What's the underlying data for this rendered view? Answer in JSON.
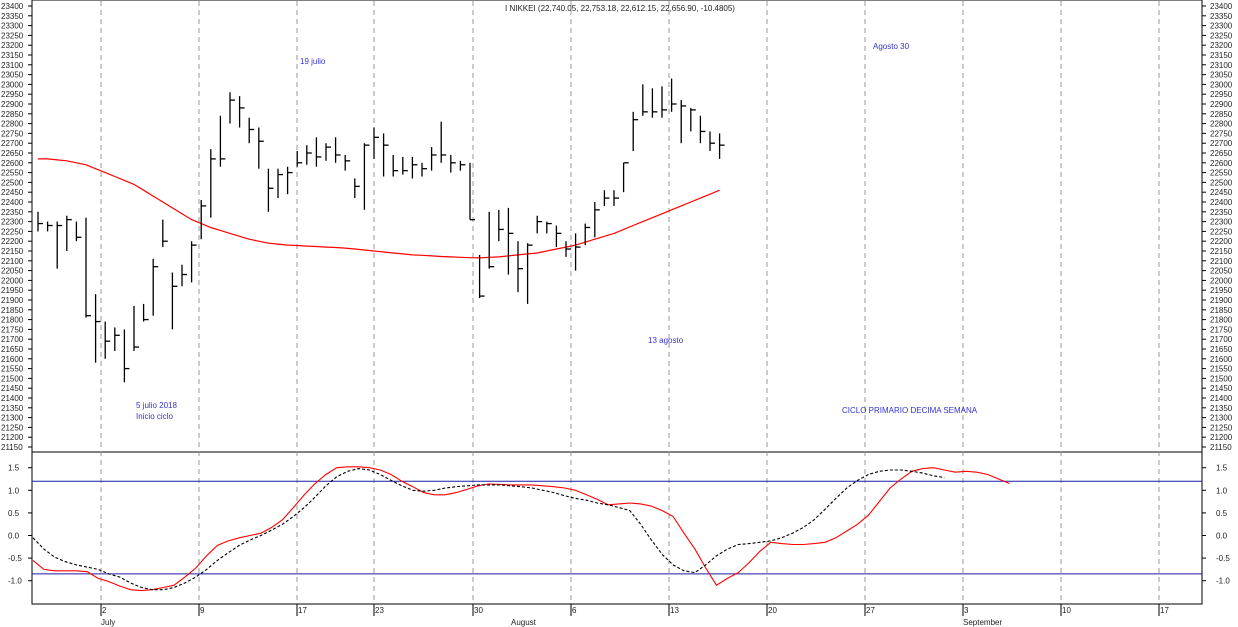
{
  "chart_data": [
    {
      "type": "ohlc",
      "title": "I NIKKEI (22,740.05, 22,753.18, 22,612.15, 22,656.90, -10.4805)",
      "ylim": [
        21100,
        23400
      ],
      "y_ticks": [
        21150,
        21200,
        21250,
        21300,
        21350,
        21400,
        21450,
        21500,
        21550,
        21600,
        21650,
        21700,
        21750,
        21800,
        21850,
        21900,
        21950,
        22000,
        22050,
        22100,
        22150,
        22200,
        22250,
        22300,
        22350,
        22400,
        22450,
        22500,
        22550,
        22600,
        22650,
        22700,
        22750,
        22800,
        22850,
        22900,
        22950,
        23000,
        23050,
        23100,
        23150,
        23200,
        23250,
        23300,
        23350,
        23400
      ],
      "bars": [
        {
          "h": 22350,
          "l": 22250,
          "c": 22290
        },
        {
          "h": 22300,
          "l": 22250,
          "c": 22280
        },
        {
          "h": 22300,
          "l": 22060,
          "c": 22280
        },
        {
          "h": 22330,
          "l": 22150,
          "c": 22310
        },
        {
          "h": 22300,
          "l": 22200,
          "c": 22220
        },
        {
          "h": 22320,
          "l": 21810,
          "c": 21820
        },
        {
          "h": 21930,
          "l": 21580,
          "c": 21790
        },
        {
          "h": 21790,
          "l": 21600,
          "c": 21690
        },
        {
          "h": 21760,
          "l": 21640,
          "c": 21720
        },
        {
          "h": 21750,
          "l": 21480,
          "c": 21550
        },
        {
          "h": 21870,
          "l": 21640,
          "c": 21660
        },
        {
          "h": 21880,
          "l": 21790,
          "c": 21800
        },
        {
          "h": 22110,
          "l": 21820,
          "c": 22070
        },
        {
          "h": 22310,
          "l": 22170,
          "c": 22200
        },
        {
          "h": 22040,
          "l": 21750,
          "c": 21970
        },
        {
          "h": 22080,
          "l": 21970,
          "c": 22030
        },
        {
          "h": 22200,
          "l": 21990,
          "c": 22180
        },
        {
          "h": 22410,
          "l": 22210,
          "c": 22380
        },
        {
          "h": 22670,
          "l": 22320,
          "c": 22620
        },
        {
          "h": 22840,
          "l": 22580,
          "c": 22620
        },
        {
          "h": 22960,
          "l": 22800,
          "c": 22920
        },
        {
          "h": 22940,
          "l": 22780,
          "c": 22880
        },
        {
          "h": 22830,
          "l": 22700,
          "c": 22770
        },
        {
          "h": 22780,
          "l": 22570,
          "c": 22710
        },
        {
          "h": 22570,
          "l": 22350,
          "c": 22470
        },
        {
          "h": 22570,
          "l": 22420,
          "c": 22540
        },
        {
          "h": 22580,
          "l": 22440,
          "c": 22550
        },
        {
          "h": 22660,
          "l": 22580,
          "c": 22600
        },
        {
          "h": 22690,
          "l": 22590,
          "c": 22650
        },
        {
          "h": 22730,
          "l": 22580,
          "c": 22630
        },
        {
          "h": 22700,
          "l": 22610,
          "c": 22680
        },
        {
          "h": 22730,
          "l": 22600,
          "c": 22640
        },
        {
          "h": 22640,
          "l": 22560,
          "c": 22610
        },
        {
          "h": 22520,
          "l": 22420,
          "c": 22480
        },
        {
          "h": 22700,
          "l": 22360,
          "c": 22690
        },
        {
          "h": 22780,
          "l": 22620,
          "c": 22730
        },
        {
          "h": 22750,
          "l": 22530,
          "c": 22690
        },
        {
          "h": 22640,
          "l": 22530,
          "c": 22560
        },
        {
          "h": 22630,
          "l": 22540,
          "c": 22560
        },
        {
          "h": 22630,
          "l": 22520,
          "c": 22590
        },
        {
          "h": 22600,
          "l": 22530,
          "c": 22570
        },
        {
          "h": 22680,
          "l": 22560,
          "c": 22640
        },
        {
          "h": 22810,
          "l": 22600,
          "c": 22640
        },
        {
          "h": 22640,
          "l": 22550,
          "c": 22600
        },
        {
          "h": 22610,
          "l": 22560,
          "c": 22590
        },
        {
          "h": 22600,
          "l": 22310,
          "c": 22310
        },
        {
          "h": 22130,
          "l": 21910,
          "c": 21920
        },
        {
          "h": 22350,
          "l": 22060,
          "c": 22070
        },
        {
          "h": 22360,
          "l": 22200,
          "c": 22260
        },
        {
          "h": 22370,
          "l": 22030,
          "c": 22240
        },
        {
          "h": 22200,
          "l": 21940,
          "c": 22060
        },
        {
          "h": 22190,
          "l": 21880,
          "c": 22180
        },
        {
          "h": 22330,
          "l": 22240,
          "c": 22300
        },
        {
          "h": 22300,
          "l": 22240,
          "c": 22290
        },
        {
          "h": 22280,
          "l": 22170,
          "c": 22240
        },
        {
          "h": 22200,
          "l": 22120,
          "c": 22160
        },
        {
          "h": 22240,
          "l": 22050,
          "c": 22170
        },
        {
          "h": 22290,
          "l": 22180,
          "c": 22270
        },
        {
          "h": 22400,
          "l": 22220,
          "c": 22360
        },
        {
          "h": 22460,
          "l": 22380,
          "c": 22420
        },
        {
          "h": 22460,
          "l": 22380,
          "c": 22420
        },
        {
          "h": 22600,
          "l": 22450,
          "c": 22600
        },
        {
          "h": 22860,
          "l": 22660,
          "c": 22820
        },
        {
          "h": 23000,
          "l": 22840,
          "c": 22860
        },
        {
          "h": 22980,
          "l": 22830,
          "c": 22860
        },
        {
          "h": 22990,
          "l": 22830,
          "c": 22870
        },
        {
          "h": 23030,
          "l": 22860,
          "c": 22900
        },
        {
          "h": 22920,
          "l": 22700,
          "c": 22890
        },
        {
          "h": 22880,
          "l": 22760,
          "c": 22870
        },
        {
          "h": 22840,
          "l": 22700,
          "c": 22760
        },
        {
          "h": 22760,
          "l": 22660,
          "c": 22700
        },
        {
          "h": 22750,
          "l": 22620,
          "c": 22690
        }
      ],
      "ma_values": [
        22620,
        22620,
        22615,
        22610,
        22600,
        22590,
        22570,
        22550,
        22530,
        22510,
        22490,
        22460,
        22430,
        22400,
        22370,
        22340,
        22310,
        22290,
        22270,
        22255,
        22240,
        22225,
        22210,
        22200,
        22190,
        22185,
        22180,
        22178,
        22175,
        22173,
        22170,
        22168,
        22165,
        22160,
        22155,
        22150,
        22145,
        22140,
        22135,
        22130,
        22128,
        22125,
        22122,
        22120,
        22118,
        22116,
        22115,
        22118,
        22120,
        22125,
        22130,
        22135,
        22140,
        22150,
        22160,
        22170,
        22180,
        22195,
        22210,
        22225,
        22240,
        22260,
        22280,
        22300,
        22320,
        22340,
        22360,
        22380,
        22400,
        22420,
        22440,
        22460
      ],
      "annotations": [
        "5 julio 2018",
        "Inicio ciclo",
        "19 julio",
        "13 agosto",
        "Agosto 30",
        "CICLO PRIMARIO DECIMA SEMANA"
      ]
    },
    {
      "type": "line",
      "ylim": [
        -1.25,
        1.65
      ],
      "y_ticks": [
        -1.0,
        -0.5,
        0.0,
        0.5,
        1.0,
        1.5
      ],
      "y_tick_labels": [
        "-1.0",
        "-0.5",
        "0.0",
        "0.5",
        "1.0",
        "1.5"
      ],
      "hlines": [
        1.2,
        -0.85
      ],
      "series": [
        {
          "style": "solid",
          "color": "#ff0000",
          "values": [
            -0.55,
            -0.75,
            -0.78,
            -0.78,
            -0.78,
            -0.8,
            -0.95,
            -1.02,
            -1.12,
            -1.2,
            -1.22,
            -1.2,
            -1.15,
            -1.1,
            -0.92,
            -0.72,
            -0.45,
            -0.22,
            -0.12,
            -0.05,
            0.0,
            0.05,
            0.18,
            0.35,
            0.62,
            0.9,
            1.15,
            1.35,
            1.5,
            1.52,
            1.52,
            1.5,
            1.45,
            1.35,
            1.2,
            1.08,
            0.95,
            0.9,
            0.9,
            0.95,
            1.02,
            1.1,
            1.14,
            1.13,
            1.12,
            1.12,
            1.12,
            1.1,
            1.08,
            1.05,
            1.0,
            0.9,
            0.8,
            0.68,
            0.7,
            0.72,
            0.7,
            0.65,
            0.55,
            0.42,
            0.05,
            -0.3,
            -0.72,
            -1.1,
            -0.95,
            -0.82,
            -0.6,
            -0.35,
            -0.15,
            -0.18,
            -0.2,
            -0.2,
            -0.18,
            -0.15,
            -0.05,
            0.1,
            0.25,
            0.45,
            0.75,
            1.05,
            1.25,
            1.42,
            1.48,
            1.5,
            1.45,
            1.4,
            1.42,
            1.4,
            1.35,
            1.25,
            1.15
          ]
        },
        {
          "style": "dashed",
          "color": "#000000",
          "values": [
            -0.05,
            -0.3,
            -0.48,
            -0.58,
            -0.65,
            -0.7,
            -0.75,
            -0.85,
            -0.92,
            -1.05,
            -1.15,
            -1.2,
            -1.2,
            -1.15,
            -1.05,
            -0.92,
            -0.75,
            -0.55,
            -0.38,
            -0.22,
            -0.1,
            0.0,
            0.12,
            0.25,
            0.42,
            0.62,
            0.85,
            1.1,
            1.3,
            1.42,
            1.48,
            1.45,
            1.35,
            1.22,
            1.1,
            1.0,
            0.98,
            1.0,
            1.05,
            1.08,
            1.1,
            1.12,
            1.12,
            1.12,
            1.1,
            1.08,
            1.05,
            1.0,
            0.95,
            0.88,
            0.82,
            0.78,
            0.72,
            0.68,
            0.62,
            0.55,
            0.25,
            -0.1,
            -0.42,
            -0.65,
            -0.78,
            -0.82,
            -0.65,
            -0.45,
            -0.3,
            -0.2,
            -0.18,
            -0.15,
            -0.12,
            -0.05,
            0.05,
            0.18,
            0.35,
            0.58,
            0.82,
            1.05,
            1.22,
            1.35,
            1.42,
            1.45,
            1.45,
            1.42,
            1.38,
            1.32,
            1.28
          ]
        }
      ]
    }
  ],
  "x_axis": {
    "day_labels": [
      "2",
      "9",
      "17",
      "23",
      "30",
      "6",
      "13",
      "20",
      "27",
      "3",
      "10",
      "17"
    ],
    "month_labels": [
      "July",
      "August",
      "September"
    ]
  }
}
